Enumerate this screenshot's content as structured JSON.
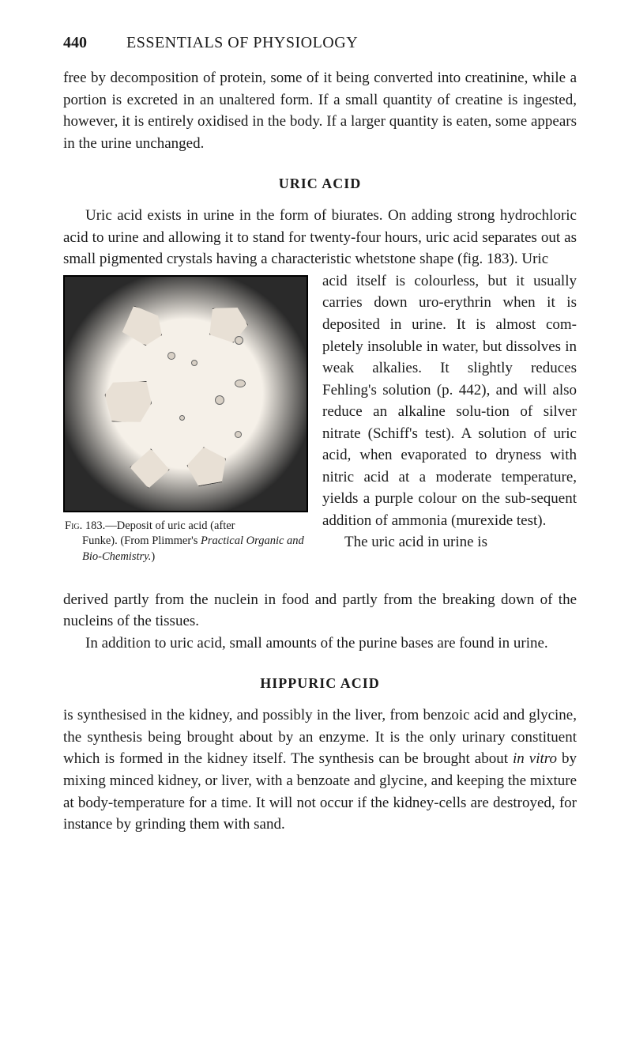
{
  "header": {
    "page_number": "440",
    "book_title": "ESSENTIALS OF PHYSIOLOGY"
  },
  "paragraphs": {
    "intro": "free by decomposition of protein, some of it being converted into creatinine, while a portion is excreted in an unaltered form. If a small quantity of creatine is ingested, however, it is entirely oxidised in the body. If a larger quantity is eaten, some appears in the urine unchanged."
  },
  "sections": {
    "uric": {
      "heading": "URIC ACID",
      "para1": "Uric acid exists in urine in the form of biurates. On adding strong hydrochloric acid to urine and allowing it to stand for twenty-four hours, uric acid separates out as small pigmented crystals having a characteristic whetstone shape (fig. 183). Uric",
      "para1_cont": "acid itself is colourless, but it usually carries down uro-erythrin when it is deposited in urine. It is almost com-pletely insoluble in water, but dissolves in weak alkalies. It slightly reduces Fehling's solution (p. 442), and will also reduce an alkaline solu-tion of silver nitrate (Schiff's test). A solution of uric acid, when evaporated to dryness with nitric acid at a moderate temperature, yields a purple colour on the sub-sequent addition of ammonia (murexide test).",
      "para2_start": "The uric acid in urine is",
      "para2_cont": "derived partly from the nuclein in food and partly from the breaking down of the nucleins of the tissues.",
      "para3": "In addition to uric acid, small amounts of the purine bases are found in urine."
    },
    "hippuric": {
      "heading": "HIPPURIC ACID",
      "para1_a": "is synthesised in the kidney, and possibly in the liver, from benzoic acid and glycine, the synthesis being brought about by an enzyme. It is the only urinary constituent which is formed in the kidney itself. The synthesis can be brought about ",
      "para1_italic": "in vitro",
      "para1_b": " by mixing minced kidney, or liver, with a benzoate and glycine, and keeping the mixture at body-temperature for a time. It will not occur if the kidney-cells are destroyed, for instance by grinding them with sand."
    }
  },
  "figure": {
    "label": "Fig.",
    "number": "183.",
    "caption_line1": "—Deposit of uric acid (after",
    "caption_line2a": "Funke). (From Plimmer's ",
    "caption_line2b_italic": "Practical Organic and Bio-Chemistry.",
    "caption_line2c": ")"
  },
  "styling": {
    "body_bg": "#ffffff",
    "text_color": "#1a1a1a",
    "body_fontsize": 19,
    "caption_fontsize": 14.5,
    "heading_fontsize": 18,
    "figure_width": 310,
    "figure_height": 300,
    "figure_border": "#000000",
    "figure_dark": "#1a1a1a",
    "figure_light": "#f5f0e8",
    "crystal_fill": "#e8e0d5"
  }
}
